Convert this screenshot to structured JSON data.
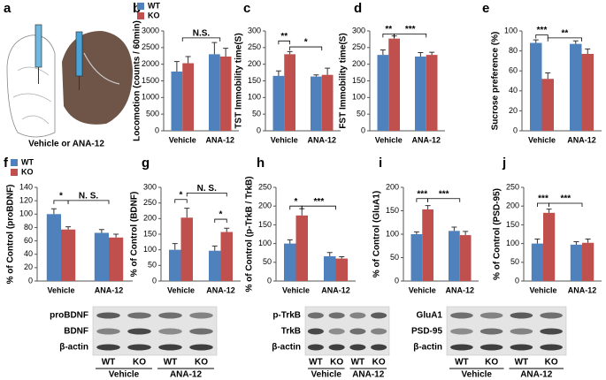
{
  "illustration": {
    "label": "a",
    "caption": "Vehicle or ANA-12"
  },
  "chart_data": [
    {
      "type": "bar",
      "label": "b",
      "ylabel": "Locomotion (counts / 60min)",
      "categories": [
        "Vehicle",
        "ANA-12"
      ],
      "series": [
        {
          "name": "WT",
          "color": "#4f81bd",
          "values": [
            1780,
            2300
          ],
          "errors": [
            300,
            350
          ]
        },
        {
          "name": "KO",
          "color": "#c0504d",
          "values": [
            2030,
            2230
          ],
          "errors": [
            200,
            250
          ]
        }
      ],
      "ylim": [
        0,
        3000
      ],
      "yticks": [
        0,
        500,
        1000,
        1500,
        2000,
        2500,
        3000
      ],
      "legend": "top-left",
      "annotations": [
        "N.S."
      ]
    },
    {
      "type": "bar",
      "label": "c",
      "ylabel": "TST Immobility time(S)",
      "categories": [
        "Vehicle",
        "ANA-12"
      ],
      "series": [
        {
          "name": "WT",
          "color": "#4f81bd",
          "values": [
            165,
            163
          ],
          "errors": [
            15,
            5
          ]
        },
        {
          "name": "KO",
          "color": "#c0504d",
          "values": [
            230,
            168
          ],
          "errors": [
            8,
            20
          ]
        }
      ],
      "ylim": [
        0,
        300
      ],
      "yticks": [
        0,
        50,
        100,
        150,
        200,
        250,
        300
      ],
      "annotations": [
        "**",
        "*"
      ]
    },
    {
      "type": "bar",
      "label": "d",
      "ylabel": "FST Immobility time(S)",
      "categories": [
        "Vehicle",
        "ANA-12"
      ],
      "series": [
        {
          "name": "WT",
          "color": "#4f81bd",
          "values": [
            228,
            223
          ],
          "errors": [
            15,
            12
          ]
        },
        {
          "name": "KO",
          "color": "#c0504d",
          "values": [
            277,
            228
          ],
          "errors": [
            8,
            8
          ]
        }
      ],
      "ylim": [
        0,
        300
      ],
      "yticks": [
        0,
        50,
        100,
        150,
        200,
        250,
        300
      ],
      "annotations": [
        "**",
        "***"
      ]
    },
    {
      "type": "bar",
      "label": "e",
      "ylabel": "Sucrose preference (%)",
      "categories": [
        "Vehicle",
        "ANA-12"
      ],
      "series": [
        {
          "name": "WT",
          "color": "#4f81bd",
          "values": [
            88,
            87
          ],
          "errors": [
            3,
            3
          ]
        },
        {
          "name": "KO",
          "color": "#c0504d",
          "values": [
            52,
            77
          ],
          "errors": [
            6,
            5
          ]
        }
      ],
      "ylim": [
        0,
        100
      ],
      "yticks": [
        0,
        20,
        40,
        60,
        80,
        100
      ],
      "annotations": [
        "***",
        "**"
      ]
    },
    {
      "type": "bar",
      "label": "f",
      "ylabel": "% of Control (proBDNF)",
      "categories": [
        "Vehicle",
        "ANA-12"
      ],
      "series": [
        {
          "name": "WT",
          "color": "#4f81bd",
          "values": [
            100,
            72
          ],
          "errors": [
            8,
            5
          ]
        },
        {
          "name": "KO",
          "color": "#c0504d",
          "values": [
            77,
            65
          ],
          "errors": [
            4,
            5
          ]
        }
      ],
      "ylim": [
        0,
        140
      ],
      "yticks": [
        0,
        20,
        40,
        60,
        80,
        100,
        120,
        140
      ],
      "legend": "top-left",
      "annotations": [
        "*",
        "N. S."
      ]
    },
    {
      "type": "bar",
      "label": "g",
      "ylabel": "% of Control (BDNF)",
      "categories": [
        "Vehicle",
        "ANA-12"
      ],
      "series": [
        {
          "name": "WT",
          "color": "#4f81bd",
          "values": [
            100,
            97
          ],
          "errors": [
            20,
            15
          ]
        },
        {
          "name": "KO",
          "color": "#c0504d",
          "values": [
            203,
            157
          ],
          "errors": [
            30,
            12
          ]
        }
      ],
      "ylim": [
        0,
        300
      ],
      "yticks": [
        0,
        50,
        100,
        150,
        200,
        250,
        300
      ],
      "annotations": [
        "*",
        "N. S.",
        "*"
      ]
    },
    {
      "type": "bar",
      "label": "h",
      "ylabel": "% of Control (p-TrkB / TrkB)",
      "categories": [
        "Vehicle",
        "ANA-12"
      ],
      "series": [
        {
          "name": "WT",
          "color": "#4f81bd",
          "values": [
            100,
            66
          ],
          "errors": [
            10,
            10
          ]
        },
        {
          "name": "KO",
          "color": "#c0504d",
          "values": [
            175,
            60
          ],
          "errors": [
            18,
            5
          ]
        }
      ],
      "ylim": [
        0,
        250
      ],
      "yticks": [
        0,
        50,
        100,
        150,
        200,
        250
      ],
      "annotations": [
        "*",
        "***"
      ]
    },
    {
      "type": "bar",
      "label": "i",
      "ylabel": "% of Control (GluA1)",
      "categories": [
        "Vehicle",
        "ANA-12"
      ],
      "series": [
        {
          "name": "WT",
          "color": "#4f81bd",
          "values": [
            100,
            107
          ],
          "errors": [
            5,
            8
          ]
        },
        {
          "name": "KO",
          "color": "#c0504d",
          "values": [
            153,
            98
          ],
          "errors": [
            8,
            8
          ]
        }
      ],
      "ylim": [
        0,
        200
      ],
      "yticks": [
        0,
        50,
        100,
        150,
        200
      ],
      "annotations": [
        "***",
        "***"
      ]
    },
    {
      "type": "bar",
      "label": "j",
      "ylabel": "% of Control (PSD-95)",
      "categories": [
        "Vehicle",
        "ANA-12"
      ],
      "series": [
        {
          "name": "WT",
          "color": "#4f81bd",
          "values": [
            100,
            97
          ],
          "errors": [
            12,
            8
          ]
        },
        {
          "name": "KO",
          "color": "#c0504d",
          "values": [
            182,
            102
          ],
          "errors": [
            10,
            10
          ]
        }
      ],
      "ylim": [
        0,
        250
      ],
      "yticks": [
        0,
        50,
        100,
        150,
        200,
        250
      ],
      "annotations": [
        "***",
        "***"
      ]
    }
  ],
  "blots": [
    {
      "bands": [
        "proBDNF",
        "BDNF",
        "β-actin"
      ],
      "lanes": [
        "WT",
        "KO",
        "WT",
        "KO"
      ],
      "groups": [
        "Vehicle",
        "ANA-12"
      ]
    },
    {
      "bands": [
        "p-TrkB",
        "TrkB",
        "β-actin"
      ],
      "lanes": [
        "WT",
        "KO",
        "WT",
        "KO"
      ],
      "groups": [
        "Vehicle",
        "ANA-12"
      ]
    },
    {
      "bands": [
        "GluA1",
        "PSD-95",
        "β-actin"
      ],
      "lanes": [
        "WT",
        "KO",
        "WT",
        "KO"
      ],
      "groups": [
        "Vehicle",
        "ANA-12"
      ]
    }
  ]
}
